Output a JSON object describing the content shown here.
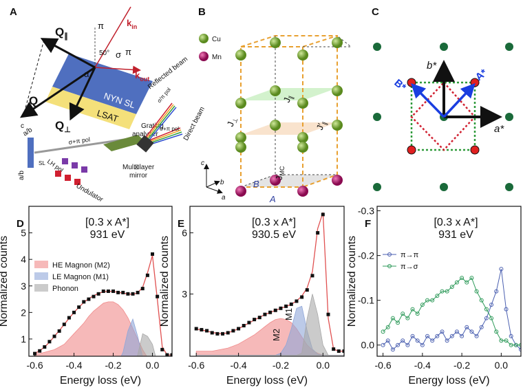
{
  "panel_a": {
    "label": "A",
    "q_par": {
      "base": "Q",
      "sub": "∥"
    },
    "q": "Q",
    "q_perp": {
      "base": "Q",
      "sub": "⊥"
    },
    "pi_in": "π",
    "k_in": {
      "base": "k",
      "sub": "in"
    },
    "angle": "50°",
    "alpha": "α",
    "sigma": "σ",
    "pi_out": "π",
    "k_out": {
      "base": "k",
      "sub": "out"
    },
    "sl": "NYN SL",
    "substrate": "LSAT",
    "c_axis": "c",
    "ab_top": "a/b",
    "ab_side": "a/b",
    "sl_small": "SL",
    "pol_in": "σ+π pol",
    "lh": "LH pol",
    "undulator": "Undulator",
    "grating": [
      "Grating",
      "analyzer"
    ],
    "reflected": "Reflected beam",
    "pol_ref": "σ/π pol",
    "direct": "Direct beam",
    "pol_dir": "σ+π pol",
    "mirror": [
      "Mul⊠layer",
      "mirror"
    ]
  },
  "panel_b": {
    "label": "B",
    "cu": "Cu",
    "mn": "Mn",
    "j_par": {
      "base": "J",
      "sub": "∥"
    },
    "j_perp": {
      "base": "J",
      "sub": "⊥"
    },
    "j_par2": {
      "base": "J′",
      "sub": "∥"
    },
    "j_mc": {
      "base": "J",
      "sub": "MC"
    },
    "c": "c",
    "b": "b",
    "a": "a",
    "A": "A",
    "B": "B"
  },
  "panel_c": {
    "label": "C",
    "b_star": "b*",
    "a_star": "a*",
    "A_star": "A*",
    "B_star": "B*"
  },
  "chart_data": [
    {
      "type": "line",
      "panel_label": "D",
      "title": "[0.3 x A*]",
      "subtitle": "931 eV",
      "x_label": "Energy loss (eV)",
      "y_label": "Normalized counts",
      "legend": "center left",
      "x": [
        -0.6,
        -0.575,
        -0.55,
        -0.525,
        -0.5,
        -0.475,
        -0.45,
        -0.425,
        -0.4,
        -0.375,
        -0.35,
        -0.325,
        -0.3,
        -0.275,
        -0.25,
        -0.225,
        -0.2,
        -0.175,
        -0.15,
        -0.125,
        -0.1,
        -0.075,
        -0.05,
        -0.025,
        0,
        0.025,
        0.05,
        0.075,
        0.1
      ],
      "xlim": [
        -0.63,
        0.1
      ],
      "xticks": [
        -0.6,
        -0.4,
        -0.2,
        {
          "value": 0,
          "label": "0.0"
        }
      ],
      "ylim": [
        0.35,
        6.0
      ],
      "yticks": [
        1,
        2,
        3,
        4,
        5
      ],
      "series": [
        {
          "name": "HE Magnon (M2)",
          "kind": "area",
          "color": "#f08a8a",
          "values": [
            0.45,
            0.45,
            0.5,
            0.55,
            0.6,
            0.7,
            0.8,
            1.0,
            1.2,
            1.4,
            1.6,
            1.85,
            2.05,
            2.2,
            2.35,
            2.4,
            2.4,
            2.3,
            2.1,
            1.8,
            1.4,
            1.0,
            0.6,
            0.3,
            0.1,
            0,
            0,
            0,
            0
          ]
        },
        {
          "name": "LE Magnon (M1)",
          "kind": "area",
          "color": "#8fa6d8",
          "values": [
            0,
            0,
            0,
            0,
            0,
            0,
            0,
            0,
            0,
            0,
            0,
            0,
            0,
            0,
            0,
            0,
            0,
            0.1,
            0.5,
            1.3,
            1.75,
            1.1,
            0.3,
            0.05,
            0,
            0,
            0,
            0,
            0
          ]
        },
        {
          "name": "Phonon",
          "kind": "area",
          "color": "#a8a8a8",
          "values": [
            0,
            0,
            0,
            0,
            0,
            0,
            0,
            0,
            0,
            0,
            0,
            0,
            0,
            0,
            0,
            0,
            0,
            0,
            0,
            0,
            0,
            0.4,
            1.2,
            1.1,
            0.8,
            0.1,
            0,
            0,
            0
          ]
        },
        {
          "kind": "line",
          "color": "#e05050",
          "values": [
            0.45,
            0.56,
            0.7,
            0.88,
            1.1,
            1.32,
            1.55,
            1.78,
            2.0,
            2.2,
            2.38,
            2.52,
            2.63,
            2.72,
            2.78,
            2.8,
            2.79,
            2.76,
            2.73,
            2.7,
            2.68,
            2.74,
            2.95,
            3.5,
            4.15,
            2.5,
            0.7,
            0.4,
            0.4
          ]
        },
        {
          "kind": "points",
          "color": "#111111",
          "values": [
            0.45,
            0.55,
            0.7,
            0.9,
            1.1,
            1.3,
            1.55,
            1.8,
            2.0,
            2.2,
            2.4,
            2.5,
            2.6,
            2.7,
            2.8,
            2.8,
            2.8,
            2.75,
            2.75,
            2.7,
            2.7,
            2.75,
            2.9,
            3.4,
            4.2,
            2.6,
            0.6,
            0.4,
            0.4
          ]
        }
      ]
    },
    {
      "type": "line",
      "panel_label": "E",
      "title": "[0.3 x A*]",
      "subtitle": "930.5 eV",
      "x_label": "Energy loss (eV)",
      "y_label": "Normalized counts",
      "annotations": [
        "M2",
        "M1"
      ],
      "x": [
        -0.6,
        -0.575,
        -0.55,
        -0.525,
        -0.5,
        -0.475,
        -0.45,
        -0.425,
        -0.4,
        -0.375,
        -0.35,
        -0.325,
        -0.3,
        -0.275,
        -0.25,
        -0.225,
        -0.2,
        -0.175,
        -0.15,
        -0.125,
        -0.1,
        -0.075,
        -0.05,
        -0.025,
        0,
        0.025,
        0.05,
        0.075,
        0.1
      ],
      "xlim": [
        -0.63,
        0.1
      ],
      "xticks": [
        -0.6,
        -0.4,
        -0.2,
        {
          "value": 0,
          "label": "0.0"
        }
      ],
      "ylim": [
        -0.05,
        7.3
      ],
      "yticks": [
        3,
        6
      ],
      "series": [
        {
          "kind": "area",
          "color": "#f08a8a",
          "values": [
            0.2,
            0.2,
            0.2,
            0.2,
            0.25,
            0.3,
            0.35,
            0.45,
            0.55,
            0.7,
            0.85,
            1.0,
            1.2,
            1.4,
            1.6,
            1.75,
            1.8,
            1.75,
            1.6,
            1.3,
            0.9,
            0.5,
            0.25,
            0.1,
            0,
            0,
            0,
            0,
            0
          ]
        },
        {
          "kind": "area",
          "color": "#8fa6d8",
          "values": [
            0,
            0,
            0,
            0,
            0,
            0,
            0,
            0,
            0,
            0,
            0,
            0,
            0,
            0,
            0,
            0,
            0.1,
            0.5,
            1.3,
            2.3,
            2.4,
            1.2,
            0.3,
            0.05,
            0,
            0,
            0,
            0,
            0
          ]
        },
        {
          "kind": "area",
          "color": "#a8a8a8",
          "values": [
            0,
            0,
            0,
            0,
            0,
            0,
            0,
            0,
            0,
            0,
            0,
            0,
            0,
            0,
            0,
            0,
            0,
            0,
            0,
            0,
            0.1,
            1.8,
            3.0,
            2.0,
            0.5,
            0,
            0,
            0,
            0
          ]
        },
        {
          "kind": "line",
          "color": "#e05050",
          "values": [
            1.28,
            1.24,
            1.18,
            1.12,
            1.07,
            1.06,
            1.1,
            1.19,
            1.3,
            1.44,
            1.58,
            1.73,
            1.86,
            1.99,
            2.1,
            2.2,
            2.3,
            2.39,
            2.5,
            2.66,
            2.9,
            3.3,
            4.1,
            6.2,
            7.0,
            1.8,
            0.3,
            0.2,
            0.2
          ]
        },
        {
          "kind": "points",
          "color": "#111111",
          "values": [
            1.3,
            1.25,
            1.2,
            1.1,
            1.05,
            1.05,
            1.1,
            1.2,
            1.3,
            1.45,
            1.6,
            1.75,
            1.85,
            2.0,
            2.1,
            2.2,
            2.3,
            2.4,
            2.5,
            2.65,
            2.85,
            3.2,
            3.9,
            6.0,
            6.9,
            2.0,
            0.3,
            0.2,
            0.2
          ]
        }
      ]
    },
    {
      "type": "line",
      "panel_label": "F",
      "title": "[0.3 x A*]",
      "subtitle": "931 eV",
      "x_label": "Energy loss (eV)",
      "y_label": "Normalized counts",
      "legend": "upper left",
      "x": [
        -0.6,
        -0.575,
        -0.55,
        -0.525,
        -0.5,
        -0.475,
        -0.45,
        -0.425,
        -0.4,
        -0.375,
        -0.35,
        -0.325,
        -0.3,
        -0.275,
        -0.25,
        -0.225,
        -0.2,
        -0.175,
        -0.15,
        -0.125,
        -0.1,
        -0.075,
        -0.05,
        -0.025,
        0,
        0.025,
        0.05,
        0.075,
        0.1
      ],
      "xlim": [
        -0.63,
        0.1
      ],
      "xticks": [
        -0.6,
        -0.4,
        -0.2,
        {
          "value": 0,
          "label": "0.0"
        }
      ],
      "ylim": [
        0.025,
        -0.31
      ],
      "yticks": [
        -0.3,
        -0.2,
        -0.1,
        {
          "value": 0,
          "label": "0.0"
        }
      ],
      "series": [
        {
          "name": "π→π",
          "kind": "points-line",
          "color": "#4a5fb0",
          "values": [
            0,
            -0.01,
            0.01,
            0,
            -0.01,
            0,
            -0.02,
            -0.01,
            0,
            -0.02,
            -0.01,
            -0.02,
            -0.03,
            -0.01,
            -0.02,
            -0.03,
            -0.02,
            -0.04,
            -0.03,
            -0.02,
            -0.04,
            -0.06,
            -0.09,
            -0.12,
            -0.17,
            -0.08,
            -0.02,
            0,
            0.01
          ]
        },
        {
          "name": "π→σ",
          "kind": "points-line",
          "color": "#2e9a5a",
          "values": [
            -0.03,
            -0.04,
            -0.06,
            -0.05,
            -0.07,
            -0.06,
            -0.08,
            -0.07,
            -0.09,
            -0.1,
            -0.1,
            -0.11,
            -0.12,
            -0.12,
            -0.13,
            -0.14,
            -0.15,
            -0.14,
            -0.15,
            -0.12,
            -0.1,
            -0.08,
            -0.06,
            -0.03,
            -0.01,
            -0.01,
            0,
            0,
            0
          ]
        }
      ]
    }
  ]
}
